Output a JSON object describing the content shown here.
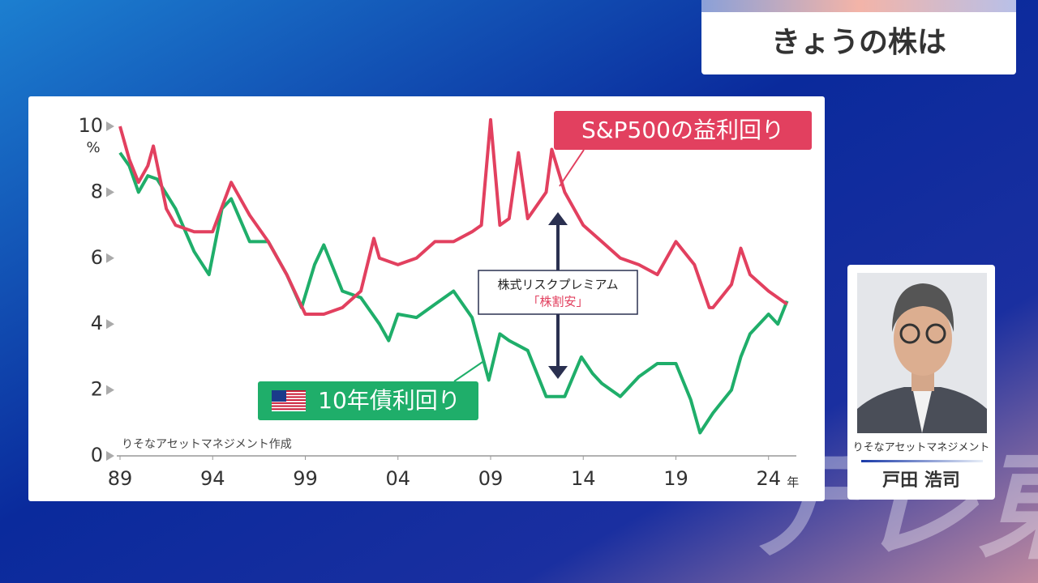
{
  "header": {
    "title": "きょうの株は"
  },
  "chart_data": {
    "type": "line",
    "y_unit": "%",
    "x_unit": "年",
    "source": "りそなアセットマネジメント作成",
    "annotations": [
      "株式リスクプレミアム",
      "「株割安」"
    ],
    "xlim": [
      1989,
      2025.5
    ],
    "xticks": [
      {
        "value": 1989,
        "label": "89"
      },
      {
        "value": 1994,
        "label": "94"
      },
      {
        "value": 1999,
        "label": "99"
      },
      {
        "value": 2004,
        "label": "04"
      },
      {
        "value": 2009,
        "label": "09"
      },
      {
        "value": 2014,
        "label": "14"
      },
      {
        "value": 2019,
        "label": "19"
      },
      {
        "value": 2024,
        "label": "24"
      }
    ],
    "ylim": [
      0,
      10
    ],
    "yticks": [
      0,
      2,
      4,
      6,
      8,
      10
    ],
    "series": [
      {
        "name": "S&P500の益利回り",
        "color": "#e2405f",
        "x": [
          1989,
          1989.5,
          1990,
          1990.5,
          1990.8,
          1991.5,
          1992,
          1993,
          1994,
          1995,
          1996,
          1997,
          1998,
          1999,
          2000,
          2001,
          2002,
          2002.7,
          2003,
          2004,
          2005,
          2006,
          2007,
          2008,
          2008.5,
          2009,
          2009.5,
          2010,
          2010.5,
          2011,
          2012,
          2012.3,
          2013,
          2014,
          2015,
          2016,
          2017,
          2018,
          2019,
          2020,
          2020.8,
          2021,
          2022,
          2022.5,
          2023,
          2024,
          2025
        ],
        "values": [
          10,
          9,
          8.3,
          8.8,
          9.4,
          7.5,
          7,
          6.8,
          6.8,
          8.3,
          7.3,
          6.5,
          5.5,
          4.3,
          4.3,
          4.5,
          5,
          6.6,
          6,
          5.8,
          6,
          6.5,
          6.5,
          6.8,
          7,
          10.2,
          7,
          7.2,
          9.2,
          7.2,
          8,
          9.3,
          8,
          7,
          6.5,
          6,
          5.8,
          5.5,
          6.5,
          5.8,
          4.5,
          4.5,
          5.2,
          6.3,
          5.5,
          5,
          4.6
        ]
      },
      {
        "name": "10年債利回り",
        "color": "#1fae6a",
        "x": [
          1989,
          1989.5,
          1990,
          1990.5,
          1991,
          1992,
          1993,
          1993.8,
          1994.5,
          1995,
          1996,
          1997,
          1998,
          1998.8,
          1999.5,
          2000,
          2001,
          2002,
          2003,
          2003.5,
          2004,
          2005,
          2006,
          2007,
          2008,
          2008.9,
          2009.5,
          2010,
          2011,
          2012,
          2013,
          2013.9,
          2014.5,
          2015,
          2016,
          2017,
          2018,
          2019,
          2019.8,
          2020.3,
          2021,
          2022,
          2022.5,
          2023,
          2024,
          2024.5,
          2025
        ],
        "values": [
          9.2,
          8.8,
          8,
          8.5,
          8.4,
          7.5,
          6.2,
          5.5,
          7.5,
          7.8,
          6.5,
          6.5,
          5.5,
          4.5,
          5.8,
          6.4,
          5,
          4.8,
          4,
          3.5,
          4.3,
          4.2,
          4.6,
          5,
          4.2,
          2.3,
          3.7,
          3.5,
          3.2,
          1.8,
          1.8,
          3,
          2.5,
          2.2,
          1.8,
          2.4,
          2.8,
          2.8,
          1.7,
          0.7,
          1.3,
          2,
          3,
          3.7,
          4.3,
          4,
          4.7
        ]
      }
    ]
  },
  "guest": {
    "company": "りそなアセットマネジメント",
    "name": "戸田 浩司"
  },
  "watermark": "テレ東"
}
